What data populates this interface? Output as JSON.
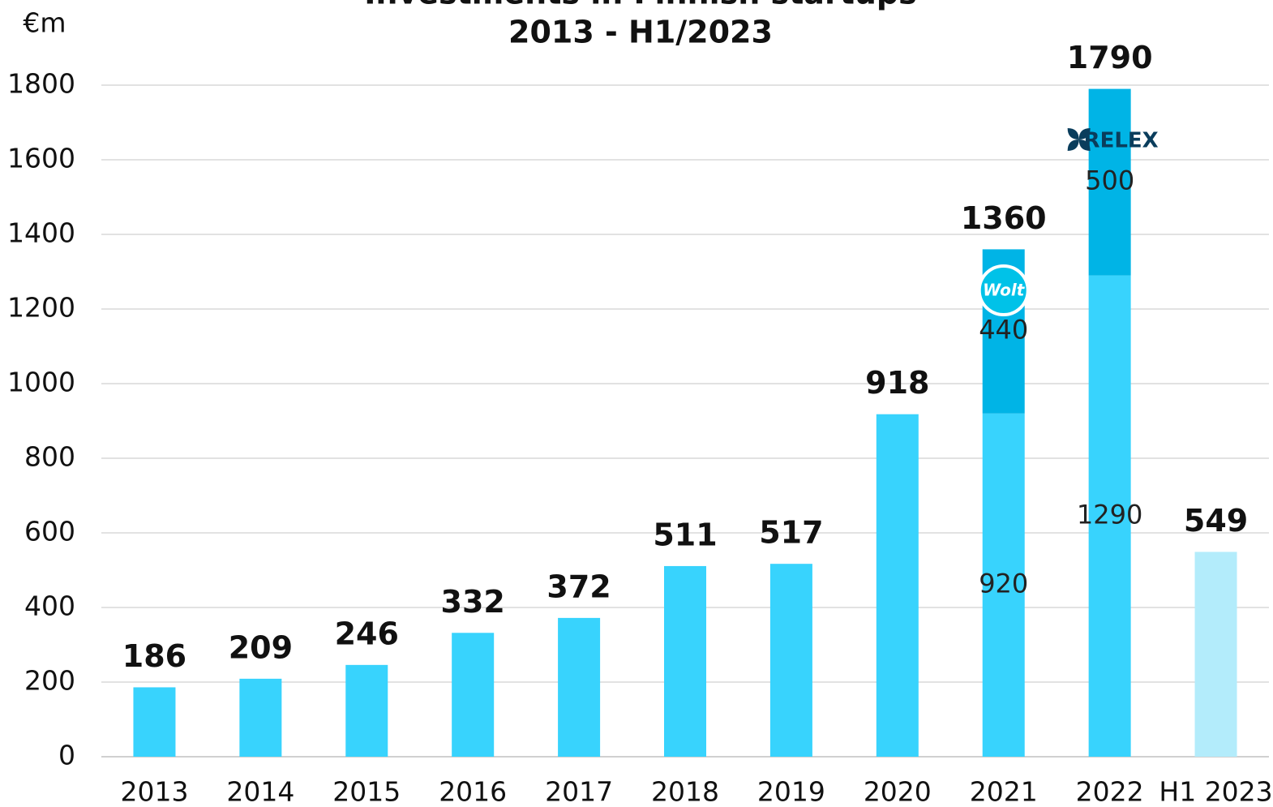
{
  "chart_data": {
    "type": "stacked_bar",
    "title": "Investments in Finnish startups",
    "subtitle": "2013 - H1/2023",
    "y_label": "€m",
    "categories": [
      "2013",
      "2014",
      "2015",
      "2016",
      "2017",
      "2018",
      "2019",
      "2020",
      "2021",
      "2022",
      "H1 2023"
    ],
    "series": [
      {
        "values": [
          186,
          209,
          246,
          332,
          372,
          511,
          517,
          918,
          920,
          1290,
          549
        ],
        "color": "#38d3fd",
        "colors": [
          "#38d3fd",
          "#38d3fd",
          "#38d3fd",
          "#38d3fd",
          "#38d3fd",
          "#38d3fd",
          "#38d3fd",
          "#38d3fd",
          "#38d3fd",
          "#38d3fd",
          "#b3ecfb"
        ]
      },
      {
        "values": [
          null,
          null,
          null,
          null,
          null,
          null,
          null,
          null,
          440,
          500,
          null
        ],
        "color": "#00b4e6"
      }
    ],
    "totals": [
      186,
      209,
      246,
      332,
      372,
      511,
      517,
      918,
      1360,
      1790,
      549
    ],
    "annotations": [
      {
        "text": "Wolt",
        "category": 8
      },
      {
        "text": "RELEX",
        "category": 9
      }
    ],
    "ylim": [
      0,
      1800
    ],
    "yticks": [
      0,
      200,
      400,
      600,
      800,
      1000,
      1200,
      1400,
      1600,
      1800
    ],
    "grid": true
  }
}
